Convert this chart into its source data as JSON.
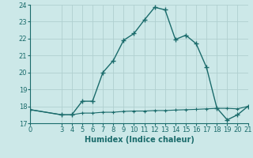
{
  "xlabel": "Humidex (Indice chaleur)",
  "bg_color": "#cce8e8",
  "grid_color": "#b0d0d0",
  "line_color": "#1a6b6b",
  "xlim": [
    0,
    21
  ],
  "ylim": [
    17,
    24
  ],
  "yticks": [
    17,
    18,
    19,
    20,
    21,
    22,
    23,
    24
  ],
  "xticks": [
    0,
    3,
    4,
    5,
    6,
    7,
    8,
    9,
    10,
    11,
    12,
    13,
    14,
    15,
    16,
    17,
    18,
    19,
    20,
    21
  ],
  "series1_x": [
    0,
    3,
    4,
    5,
    6,
    7,
    8,
    9,
    10,
    11,
    12,
    13,
    14,
    15,
    16,
    17,
    18,
    19,
    20,
    21
  ],
  "series1_y": [
    17.8,
    17.5,
    17.5,
    18.3,
    18.3,
    20.0,
    20.7,
    21.9,
    22.3,
    23.1,
    23.85,
    23.7,
    21.95,
    22.2,
    21.7,
    20.3,
    17.9,
    17.2,
    17.5,
    18.0
  ],
  "series2_x": [
    0,
    3,
    4,
    5,
    6,
    7,
    8,
    9,
    10,
    11,
    12,
    13,
    14,
    15,
    16,
    17,
    18,
    19,
    20,
    21
  ],
  "series2_y": [
    17.8,
    17.5,
    17.5,
    17.6,
    17.6,
    17.65,
    17.65,
    17.7,
    17.72,
    17.72,
    17.75,
    17.75,
    17.78,
    17.8,
    17.82,
    17.85,
    17.88,
    17.88,
    17.85,
    18.0
  ]
}
